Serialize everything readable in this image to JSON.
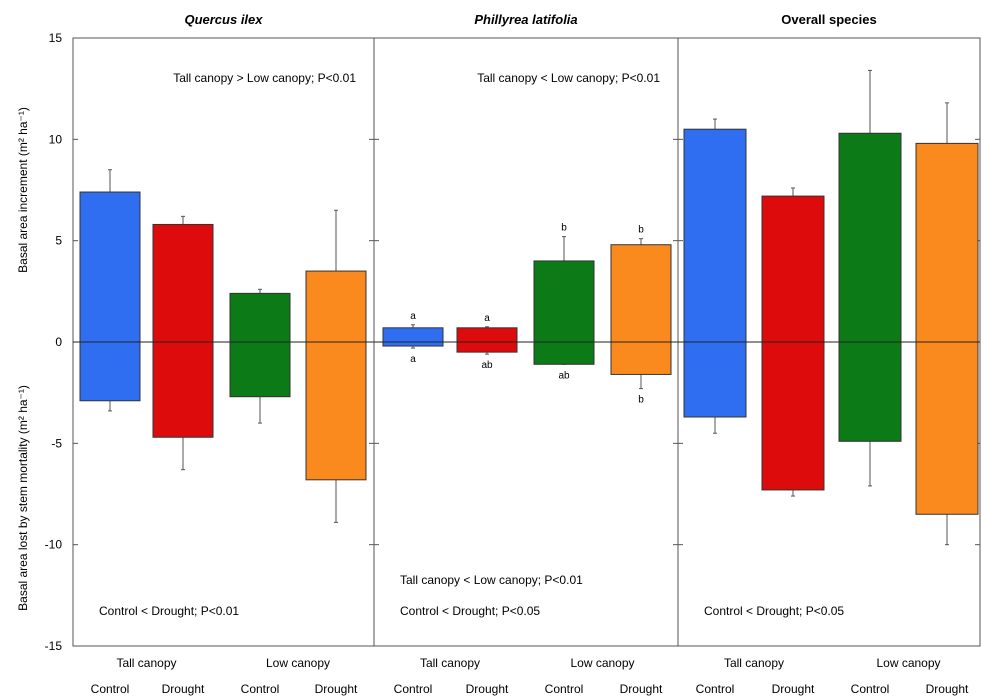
{
  "chart_data": {
    "type": "bar",
    "ylim": [
      -15,
      15
    ],
    "yticks": [
      -15,
      -10,
      -5,
      0,
      5,
      10,
      15
    ],
    "ylabel_top": "Basal area increment (m² ha⁻¹)",
    "ylabel_bottom": "Basal area lost by stem mortality (m² ha⁻¹)",
    "group_labels": [
      "Tall canopy",
      "Low canopy"
    ],
    "treatment_labels": [
      "Control",
      "Drought",
      "Control",
      "Drought"
    ],
    "colors": [
      "#2f6ef0",
      "#dd0b0b",
      "#0b7a17",
      "#fb8a1e"
    ],
    "panels": [
      {
        "title": "Quercus ilex",
        "italic": true,
        "bars": [
          {
            "group": "Tall canopy",
            "treatment": "Control",
            "pos": 7.4,
            "pos_err": 8.5,
            "neg": -2.9,
            "neg_err": -3.4
          },
          {
            "group": "Tall canopy",
            "treatment": "Drought",
            "pos": 5.8,
            "pos_err": 6.2,
            "neg": -4.7,
            "neg_err": -6.3
          },
          {
            "group": "Low canopy",
            "treatment": "Control",
            "pos": 2.4,
            "pos_err": 2.6,
            "neg": -2.7,
            "neg_err": -4.0
          },
          {
            "group": "Low canopy",
            "treatment": "Drought",
            "pos": 3.5,
            "pos_err": 6.5,
            "neg": -6.8,
            "neg_err": -8.9
          }
        ],
        "annotations_top": [
          "Tall canopy > Low canopy; P<0.01"
        ],
        "annotations_bottom": [
          "Control < Drought; P<0.01"
        ]
      },
      {
        "title": "Phillyrea latifolia",
        "italic": true,
        "bars": [
          {
            "group": "Tall canopy",
            "treatment": "Control",
            "pos": 0.7,
            "pos_err": 0.85,
            "neg": -0.2,
            "neg_err": -0.3,
            "sig_top": "a",
            "sig_bottom": "a"
          },
          {
            "group": "Tall canopy",
            "treatment": "Drought",
            "pos": 0.7,
            "pos_err": 0.75,
            "neg": -0.5,
            "neg_err": -0.6,
            "sig_top": "a",
            "sig_bottom": "ab"
          },
          {
            "group": "Low canopy",
            "treatment": "Control",
            "pos": 4.0,
            "pos_err": 5.2,
            "neg": -1.1,
            "neg_err": -1.1,
            "sig_top": "b",
            "sig_bottom": "ab"
          },
          {
            "group": "Low canopy",
            "treatment": "Drought",
            "pos": 4.8,
            "pos_err": 5.1,
            "neg": -1.6,
            "neg_err": -2.3,
            "sig_top": "b",
            "sig_bottom": "b"
          }
        ],
        "annotations_top": [
          "Tall canopy < Low canopy; P<0.01"
        ],
        "annotations_bottom": [
          "Tall canopy < Low canopy; P<0.01",
          "Control < Drought; P<0.05"
        ]
      },
      {
        "title": "Overall species",
        "italic": false,
        "bars": [
          {
            "group": "Tall canopy",
            "treatment": "Control",
            "pos": 10.5,
            "pos_err": 11.0,
            "neg": -3.7,
            "neg_err": -4.5
          },
          {
            "group": "Tall canopy",
            "treatment": "Drought",
            "pos": 7.2,
            "pos_err": 7.6,
            "neg": -7.3,
            "neg_err": -7.6
          },
          {
            "group": "Low canopy",
            "treatment": "Control",
            "pos": 10.3,
            "pos_err": 13.4,
            "neg": -4.9,
            "neg_err": -7.1
          },
          {
            "group": "Low canopy",
            "treatment": "Drought",
            "pos": 9.8,
            "pos_err": 11.8,
            "neg": -8.5,
            "neg_err": -10.0
          }
        ],
        "annotations_top": [],
        "annotations_bottom": [
          "Control < Drought; P<0.05"
        ]
      }
    ]
  }
}
